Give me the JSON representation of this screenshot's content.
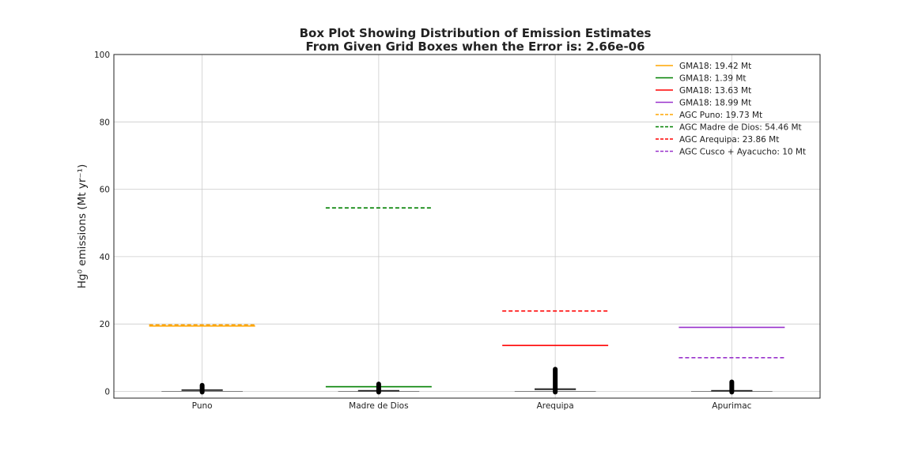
{
  "chart_data": {
    "type": "box",
    "title_lines": [
      "Box Plot Showing Distribution of Emission Estimates",
      "From Given Grid Boxes when the Error is: 2.66e-06"
    ],
    "xlabel": "",
    "ylabel": "Hg⁰ emissions (Mt yr⁻¹)",
    "ylim": [
      -2,
      100
    ],
    "yticks": [
      0,
      20,
      40,
      60,
      80,
      100
    ],
    "ytick_labels": [
      "0",
      "20",
      "40",
      "60",
      "80",
      "100"
    ],
    "categories": [
      "Puno",
      "Madre de Dios",
      "Arequipa",
      "Apurimac"
    ],
    "grid": true,
    "legend_position": "top-right",
    "boxes": [
      {
        "category": "Puno",
        "q1": 0.3,
        "median": 0.4,
        "q3": 0.5,
        "whisker_low": 0.0,
        "whisker_high": 0.8,
        "flier_min": -0.2,
        "flier_max": 1.8
      },
      {
        "category": "Madre de Dios",
        "q1": 0.1,
        "median": 0.2,
        "q3": 0.3,
        "whisker_low": 0.0,
        "whisker_high": 0.5,
        "flier_min": -0.2,
        "flier_max": 2.2
      },
      {
        "category": "Arequipa",
        "q1": 0.5,
        "median": 0.6,
        "q3": 0.8,
        "whisker_low": 0.0,
        "whisker_high": 1.5,
        "flier_min": -0.2,
        "flier_max": 6.6
      },
      {
        "category": "Apurimac",
        "q1": 0.1,
        "median": 0.2,
        "q3": 0.3,
        "whisker_low": 0.0,
        "whisker_high": 0.6,
        "flier_min": -0.2,
        "flier_max": 2.8
      }
    ],
    "reference_lines": [
      {
        "label": "GMA18: 19.42 Mt",
        "value": 19.42,
        "category": "Puno",
        "color": "#ffa500",
        "dashed": false
      },
      {
        "label": "GMA18: 1.39 Mt",
        "value": 1.39,
        "category": "Madre de Dios",
        "color": "#008000",
        "dashed": false
      },
      {
        "label": "GMA18: 13.63 Mt",
        "value": 13.63,
        "category": "Arequipa",
        "color": "#ff0000",
        "dashed": false
      },
      {
        "label": "GMA18: 18.99 Mt",
        "value": 18.99,
        "category": "Apurimac",
        "color": "#9932cc",
        "dashed": false
      },
      {
        "label": "AGC Puno: 19.73 Mt",
        "value": 19.73,
        "category": "Puno",
        "color": "#ffa500",
        "dashed": true
      },
      {
        "label": "AGC Madre de Dios: 54.46 Mt",
        "value": 54.46,
        "category": "Madre de Dios",
        "color": "#008000",
        "dashed": true
      },
      {
        "label": "AGC Arequipa: 23.86 Mt",
        "value": 23.86,
        "category": "Arequipa",
        "color": "#ff0000",
        "dashed": true
      },
      {
        "label": "AGC Cusco + Ayacucho: 10 Mt",
        "value": 10,
        "category": "Apurimac",
        "color": "#9932cc",
        "dashed": true
      }
    ]
  }
}
